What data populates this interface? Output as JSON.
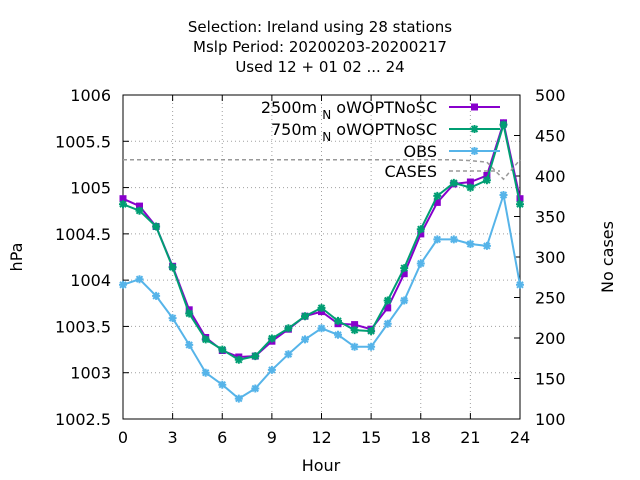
{
  "chart_data": {
    "type": "line",
    "title": [
      "Selection: Ireland using    28 stations",
      "Mslp   Period: 20200203-20200217",
      "Used  12 + 01 02 ... 24"
    ],
    "xlabel": "Hour",
    "ylabel": "hPa",
    "y2label": "No cases",
    "xlim": [
      0,
      24
    ],
    "ylim": [
      1002.5,
      1006
    ],
    "y2lim": [
      100,
      500
    ],
    "xticks": [
      0,
      3,
      6,
      9,
      12,
      15,
      18,
      21,
      24
    ],
    "xtick_labels": [
      "0",
      "3",
      "6",
      "9",
      "12",
      "15",
      "18",
      "21",
      "24"
    ],
    "yticks": [
      1002.5,
      1003,
      1003.5,
      1004,
      1004.5,
      1005,
      1005.5,
      1006
    ],
    "ytick_labels": [
      "1002.5",
      "1003",
      "1003.5",
      "1004",
      "1004.5",
      "1005",
      "1005.5",
      "1006"
    ],
    "y2ticks": [
      100,
      150,
      200,
      250,
      300,
      350,
      400,
      450,
      500
    ],
    "y2tick_labels": [
      "100",
      "150",
      "200",
      "250",
      "300",
      "350",
      "400",
      "450",
      "500"
    ],
    "grid": true,
    "legend_position": "top-right",
    "x": [
      0,
      1,
      2,
      3,
      4,
      5,
      6,
      7,
      8,
      9,
      10,
      11,
      12,
      13,
      14,
      15,
      16,
      17,
      18,
      19,
      20,
      21,
      22,
      23,
      24
    ],
    "series": [
      {
        "name": "2500m_N oWOPTNoSC",
        "legend_main": "2500m",
        "legend_sub": "N",
        "legend_rest": "oWOPTNoSC",
        "color": "#8800cc",
        "axis": "left",
        "values": [
          1004.88,
          1004.8,
          1004.58,
          1004.15,
          1003.68,
          1003.38,
          1003.24,
          1003.17,
          1003.18,
          1003.34,
          1003.47,
          1003.61,
          1003.66,
          1003.53,
          1003.52,
          1003.47,
          1003.7,
          1004.07,
          1004.5,
          1004.84,
          1005.04,
          1005.06,
          1005.13,
          1005.7,
          1004.88
        ]
      },
      {
        "name": "750m_N oWOPTNoSC",
        "legend_main": "750m",
        "legend_sub": "N",
        "legend_rest": "oWOPTNoSC",
        "color": "#009e73",
        "axis": "left",
        "values": [
          1004.82,
          1004.75,
          1004.58,
          1004.14,
          1003.64,
          1003.36,
          1003.25,
          1003.14,
          1003.18,
          1003.37,
          1003.48,
          1003.61,
          1003.7,
          1003.56,
          1003.46,
          1003.45,
          1003.78,
          1004.13,
          1004.55,
          1004.91,
          1005.05,
          1005.0,
          1005.08,
          1005.68,
          1004.82
        ]
      },
      {
        "name": "OBS",
        "legend_main": "OBS",
        "legend_sub": "",
        "legend_rest": "",
        "color": "#56b4e9",
        "axis": "left",
        "values": [
          1003.95,
          1004.01,
          1003.83,
          1003.59,
          1003.3,
          1003.0,
          1002.87,
          1002.72,
          1002.83,
          1003.03,
          1003.2,
          1003.36,
          1003.48,
          1003.41,
          1003.28,
          1003.28,
          1003.53,
          1003.78,
          1004.18,
          1004.44,
          1004.44,
          1004.39,
          1004.37,
          1004.92,
          1003.95
        ]
      },
      {
        "name": "CASES",
        "legend_main": "CASES",
        "legend_sub": "",
        "legend_rest": "",
        "color": "#999999",
        "axis": "right",
        "dashed": true,
        "values": [
          420,
          420,
          420,
          420,
          420,
          420,
          420,
          420,
          420,
          420,
          420,
          420,
          420,
          420,
          420,
          420,
          420,
          420,
          420,
          420,
          420,
          419,
          417,
          396,
          420
        ]
      }
    ]
  }
}
